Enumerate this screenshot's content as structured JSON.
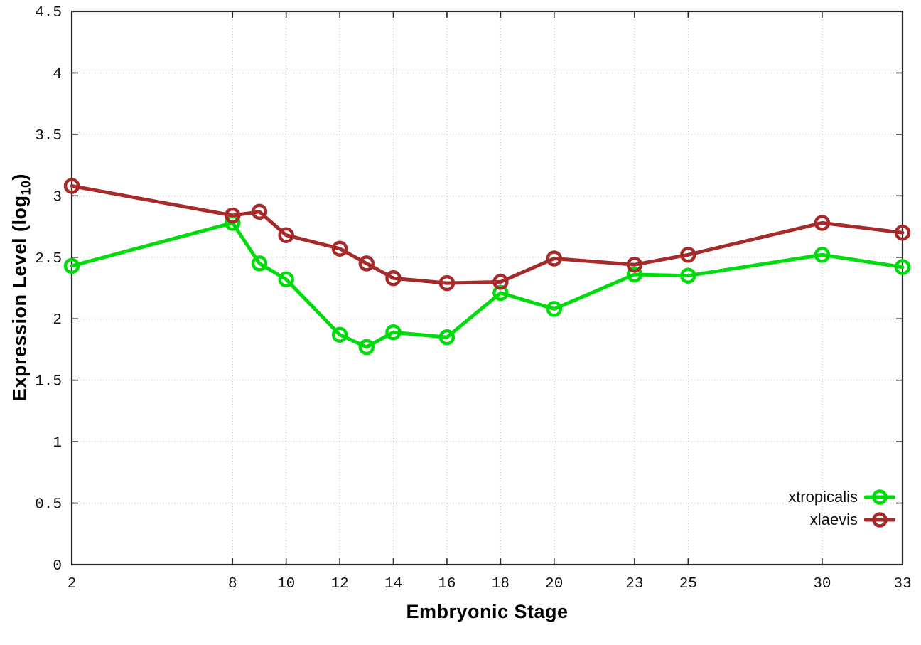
{
  "figure": {
    "xlabel": "Embryonic Stage",
    "ylabel_prefix": "Expression Level (log",
    "ylabel_sub": "10",
    "ylabel_suffix": ")"
  },
  "chart_data": {
    "type": "line",
    "title": "",
    "xlabel": "Embryonic Stage",
    "ylabel": "Expression Level (log10)",
    "x": [
      2,
      8,
      9,
      10,
      12,
      13,
      14,
      16,
      18,
      20,
      23,
      25,
      30,
      33
    ],
    "series": [
      {
        "name": "xtropicalis",
        "color": "#00db0c",
        "marker": "open-circle",
        "values": [
          2.43,
          2.78,
          2.45,
          2.32,
          1.87,
          1.77,
          1.89,
          1.85,
          2.21,
          2.08,
          2.36,
          2.35,
          2.52,
          2.42
        ]
      },
      {
        "name": "xlaevis",
        "color": "#a62a2a",
        "marker": "open-circle",
        "values": [
          3.08,
          2.84,
          2.87,
          2.68,
          2.57,
          2.45,
          2.33,
          2.29,
          2.3,
          2.49,
          2.44,
          2.52,
          2.78,
          2.7
        ]
      }
    ],
    "xlim": [
      2,
      33
    ],
    "ylim": [
      0,
      4.5
    ],
    "xticks": [
      2,
      8,
      10,
      12,
      14,
      16,
      18,
      20,
      23,
      25,
      30,
      33
    ],
    "yticks": [
      0,
      0.5,
      1,
      1.5,
      2,
      2.5,
      3,
      3.5,
      4,
      4.5
    ],
    "grid": true,
    "grid_style": "dotted",
    "legend_position": "inside-bottom-right",
    "border": "full-box-mirrored-ticks"
  }
}
